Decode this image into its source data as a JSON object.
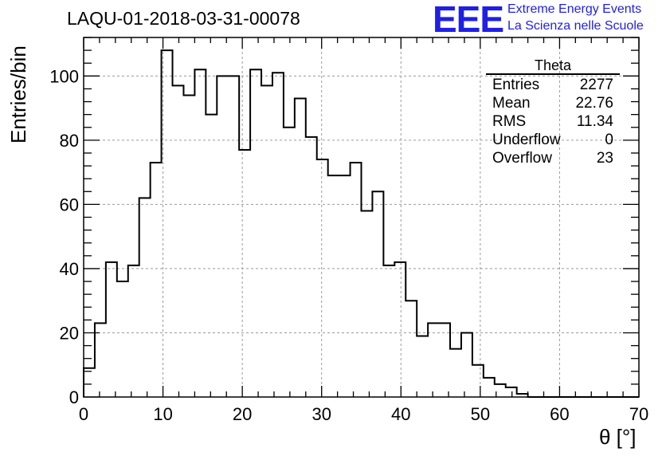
{
  "header": {
    "run_title": "LAQU-01-2018-03-31-00078",
    "logo_text": "EEE",
    "logo_line1": "Extreme Energy Events",
    "logo_line2": "La Scienza nelle Scuole"
  },
  "stats": {
    "title": "Theta",
    "rows": [
      {
        "label": "Entries",
        "value": "2277"
      },
      {
        "label": "Mean",
        "value": "22.76"
      },
      {
        "label": "RMS",
        "value": "11.34"
      },
      {
        "label": "Underflow",
        "value": "0"
      },
      {
        "label": "Overflow",
        "value": "23"
      }
    ]
  },
  "chart_data": {
    "type": "bar",
    "title": "LAQU-01-2018-03-31-00078",
    "xlabel": "θ [°]",
    "ylabel": "Entries/bin",
    "xlim": [
      0,
      70
    ],
    "ylim": [
      0,
      112
    ],
    "grid": true,
    "bin_width": 1.4,
    "bin_start": 0,
    "values": [
      9,
      23,
      42,
      36,
      41,
      62,
      73,
      108,
      97,
      94,
      102,
      88,
      100,
      100,
      77,
      102,
      97,
      101,
      84,
      93,
      81,
      74,
      69,
      69,
      73,
      58,
      64,
      41,
      42,
      30,
      19,
      23,
      23,
      15,
      20,
      10,
      6,
      4,
      3,
      1,
      0,
      0,
      0,
      0,
      0,
      0,
      0,
      0,
      0,
      0
    ],
    "xticks": [
      0,
      10,
      20,
      30,
      40,
      50,
      60,
      70
    ],
    "yticks": [
      0,
      20,
      40,
      60,
      80,
      100
    ]
  }
}
